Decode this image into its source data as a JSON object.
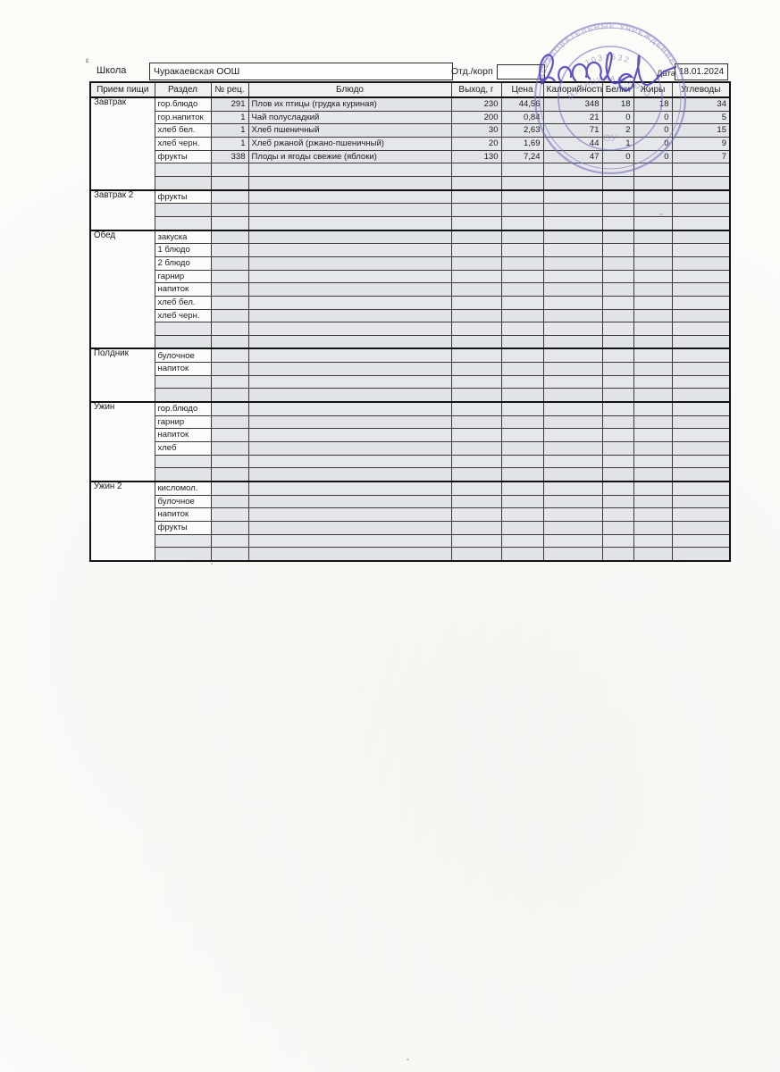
{
  "form": {
    "corner_mark": "ε",
    "school_label": "Школа",
    "school_value": "Чуракаевская ООШ",
    "dept_label": "Отд./корп",
    "dept_value": "",
    "date_label": "Дата",
    "date_value": "18.01.2024"
  },
  "stamp": {
    "arc_top": "ОБРАЗОВАТЕЛЬНЫЕ УЧРЕЖДЕНИЕ",
    "arc_inner": "МУНИЦИПАЛЬНОГО",
    "number": "1031632",
    "center_text": "ОУ"
  },
  "colors": {
    "stamp_purple": "#7e6cbc",
    "signature_ink": "#4a3fbf",
    "cell_tint": "#e0e4e7",
    "paper": "#fbfbf8"
  },
  "table": {
    "columns": [
      "Прием пищи",
      "Раздел",
      "№ рец.",
      "Блюдо",
      "Выход, г",
      "Цена",
      "Калорийность",
      "Белки",
      "Жиры",
      "Углеводы"
    ],
    "sections": [
      {
        "meal": "Завтрак",
        "rows": [
          [
            "гор.блюдо",
            "291",
            "Плов их птицы (грудка куриная)",
            "230",
            "44,56",
            "348",
            "18",
            "18",
            "34"
          ],
          [
            "гор.напиток",
            "1",
            "Чай полусладкий",
            "200",
            "0,84",
            "21",
            "0",
            "0",
            "5"
          ],
          [
            "хлеб бел.",
            "1",
            "Хлеб пшеничный",
            "30",
            "2,63",
            "71",
            "2",
            "0",
            "15"
          ],
          [
            "хлеб черн.",
            "1",
            "Хлеб ржаной (ржано-пшеничный)",
            "20",
            "1,69",
            "44",
            "1",
            "0",
            "9"
          ],
          [
            "фрукты",
            "338",
            "Плоды и ягоды свежие (яблоки)",
            "130",
            "7,24",
            "47",
            "0",
            "0",
            "7"
          ],
          [],
          []
        ]
      },
      {
        "meal": "Завтрак 2",
        "rows": [
          [
            "фрукты",
            "",
            "",
            "",
            "",
            "",
            "",
            "",
            ""
          ],
          [],
          []
        ]
      },
      {
        "meal": "Обед",
        "rows": [
          [
            "закуска",
            "",
            "",
            "",
            "",
            "",
            "",
            "",
            ""
          ],
          [
            "1 блюдо",
            "",
            "",
            "",
            "",
            "",
            "",
            "",
            ""
          ],
          [
            "2 блюдо",
            "",
            "",
            "",
            "",
            "",
            "",
            "",
            ""
          ],
          [
            "гарнир",
            "",
            "",
            "",
            "",
            "",
            "",
            "",
            ""
          ],
          [
            "напиток",
            "",
            "",
            "",
            "",
            "",
            "",
            "",
            ""
          ],
          [
            "хлеб бел.",
            "",
            "",
            "",
            "",
            "",
            "",
            "",
            ""
          ],
          [
            "хлеб черн.",
            "",
            "",
            "",
            "",
            "",
            "",
            "",
            ""
          ],
          [],
          []
        ]
      },
      {
        "meal": "Полдник",
        "rows": [
          [
            "булочное",
            "",
            "",
            "",
            "",
            "",
            "",
            "",
            ""
          ],
          [
            "напиток",
            "",
            "",
            "",
            "",
            "",
            "",
            "",
            ""
          ],
          [],
          []
        ]
      },
      {
        "meal": "Ужин",
        "rows": [
          [
            "гор.блюдо",
            "",
            "",
            "",
            "",
            "",
            "",
            "",
            ""
          ],
          [
            "гарнир",
            "",
            "",
            "",
            "",
            "",
            "",
            "",
            ""
          ],
          [
            "напиток",
            "",
            "",
            "",
            "",
            "",
            "",
            "",
            ""
          ],
          [
            "хлеб",
            "",
            "",
            "",
            "",
            "",
            "",
            "",
            ""
          ],
          [],
          []
        ]
      },
      {
        "meal": "Ужин 2",
        "rows": [
          [
            "кисломол.",
            "",
            "",
            "",
            "",
            "",
            "",
            "",
            ""
          ],
          [
            "булочное",
            "",
            "",
            "",
            "",
            "",
            "",
            "",
            ""
          ],
          [
            "напиток",
            "",
            "",
            "",
            "",
            "",
            "",
            "",
            ""
          ],
          [
            "фрукты",
            "",
            "",
            "",
            "",
            "",
            "",
            "",
            ""
          ],
          [],
          []
        ]
      }
    ]
  }
}
